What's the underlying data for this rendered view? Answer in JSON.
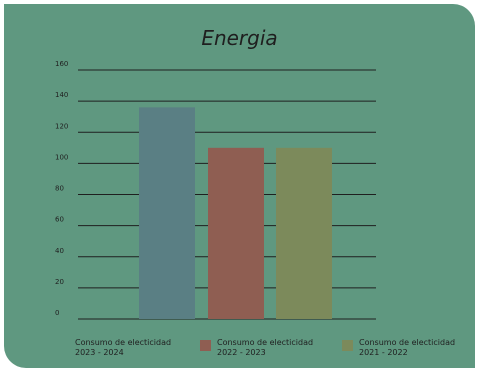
{
  "chart_data": {
    "type": "bar",
    "title": "Energia",
    "categories": [
      "Consumo de electicidad 2023 - 2024",
      "Consumo de electicidad 2022 - 2023",
      "Consumo de electicidad 2021 - 2022"
    ],
    "legend_lines": [
      [
        "Consumo de electicidad",
        "2023 - 2024"
      ],
      [
        "Consumo de electicidad",
        "2022 - 2023"
      ],
      [
        "Consumo de electicidad",
        "2021 - 2022"
      ]
    ],
    "values": [
      136,
      110,
      110
    ],
    "colors": [
      "#5a7f84",
      "#8f5e52",
      "#7c8a5b"
    ],
    "ylim": [
      0,
      160
    ],
    "yticks": [
      0,
      20,
      40,
      60,
      80,
      100,
      120,
      140,
      160
    ],
    "xlabel": "",
    "ylabel": "",
    "grid": true,
    "legend_position": "bottom"
  },
  "colors": {
    "card_background": "#5f9880",
    "gridline": "#1f1f1f",
    "text": "#1f1f1f"
  }
}
